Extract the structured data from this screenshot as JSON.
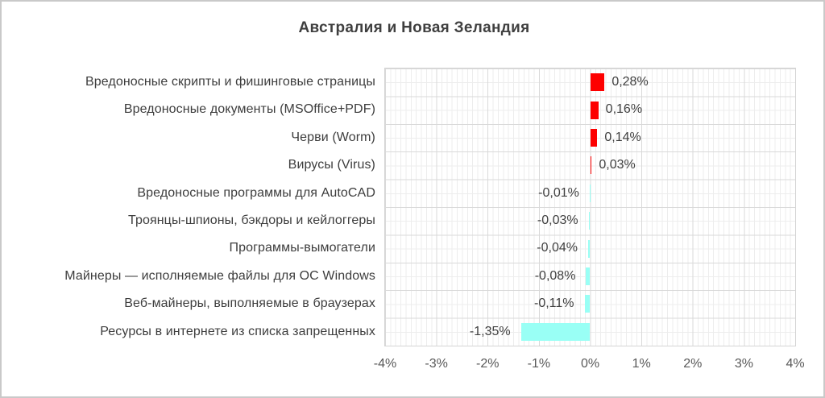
{
  "chart_data": {
    "type": "bar",
    "orientation": "horizontal",
    "title": "Австралия и Новая Зеландия",
    "categories": [
      "Вредоносные скрипты и фишинговые страницы",
      "Вредоносные документы (MSOffice+PDF)",
      "Черви (Worm)",
      "Вирусы (Virus)",
      "Вредоносные программы для AutoCAD",
      "Троянцы-шпионы, бэкдоры и кейлоггеры",
      "Программы-вымогатели",
      "Майнеры — исполняемые файлы для ОС Windows",
      "Веб-майнеры, выполняемые в браузерах",
      "Ресурсы в интернете из списка запрещенных"
    ],
    "values": [
      0.28,
      0.16,
      0.14,
      0.03,
      -0.01,
      -0.03,
      -0.04,
      -0.08,
      -0.11,
      -1.35
    ],
    "value_labels": [
      "0,28%",
      "0,16%",
      "0,14%",
      "0,03%",
      "-0,01%",
      "-0,03%",
      "-0,04%",
      "-0,08%",
      "-0,11%",
      "-1,35%"
    ],
    "x_tick_labels": [
      "-4%",
      "-3%",
      "-2%",
      "-1%",
      "0%",
      "1%",
      "2%",
      "3%",
      "4%"
    ],
    "xlim": [
      -4,
      4
    ],
    "grid": true,
    "legend": "none",
    "positive_color": "#fd0000",
    "negative_color": "#99fff5",
    "title_color": "#3f3f3f",
    "text_color": "#404040",
    "axis_label_color": "#595959",
    "major_grid_color": "#d9d9d9",
    "minor_grid_color": "#ededed"
  }
}
